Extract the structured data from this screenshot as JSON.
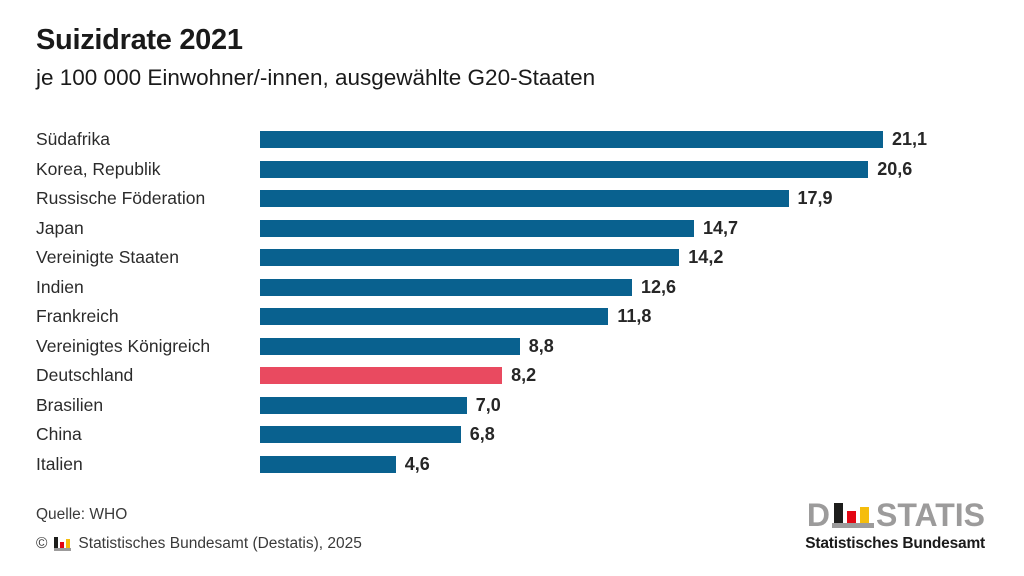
{
  "header": {
    "title": "Suizidrate 2021",
    "subtitle": "je 100 000 Einwohner/-innen, ausgewählte G20-Staaten"
  },
  "chart_data": {
    "type": "bar",
    "orientation": "horizontal",
    "title": "Suizidrate 2021",
    "subtitle": "je 100 000 Einwohner/-innen, ausgewählte G20-Staaten",
    "categories": [
      "Südafrika",
      "Korea, Republik",
      "Russische Föderation",
      "Japan",
      "Vereinigte Staaten",
      "Indien",
      "Frankreich",
      "Vereinigtes Königreich",
      "Deutschland",
      "Brasilien",
      "China",
      "Italien"
    ],
    "values": [
      21.1,
      20.6,
      17.9,
      14.7,
      14.2,
      12.6,
      11.8,
      8.8,
      8.2,
      7.0,
      6.8,
      4.6
    ],
    "value_labels": [
      "21,1",
      "20,6",
      "17,9",
      "14,7",
      "14,2",
      "12,6",
      "11,8",
      "8,8",
      "8,2",
      "7,0",
      "6,8",
      "4,6"
    ],
    "highlight_category": "Deutschland",
    "colors": {
      "bar": "#09618f",
      "highlight": "#e94a60"
    },
    "xlim": [
      0,
      22
    ],
    "grid": false,
    "legend": false,
    "data_labels": "end-of-bar"
  },
  "footer": {
    "source": "Quelle: WHO",
    "copyright_symbol": "©",
    "copyright_text": "Statistisches Bundesamt (Destatis), 2025"
  },
  "logo": {
    "text_left": "D",
    "text_right": "STATIS",
    "subtitle": "Statistisches Bundesamt",
    "colors": {
      "gray": "#9c9b9b",
      "black": "#1d1d1b",
      "red": "#e30613",
      "gold": "#f5bd0c"
    }
  }
}
